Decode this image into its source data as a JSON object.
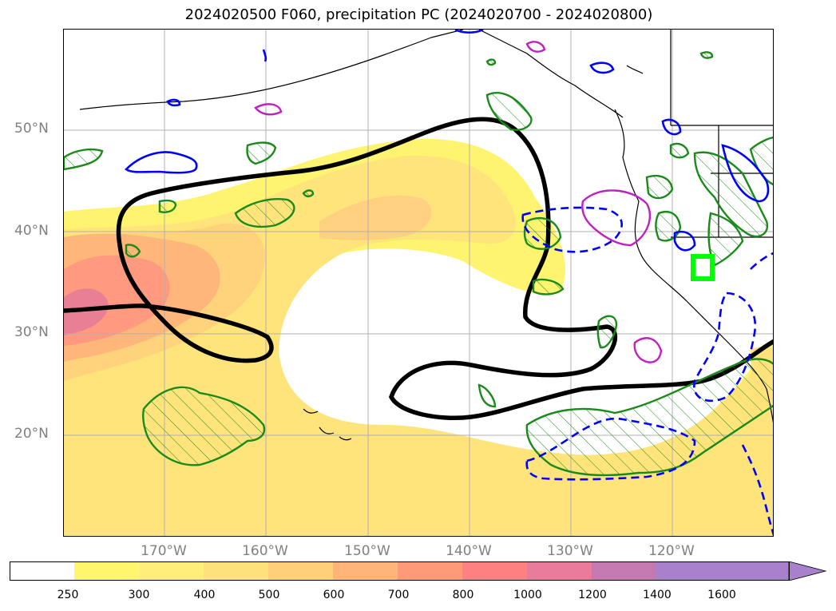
{
  "title": "2024020500 F060, precipitation PC (2024020700 - 2024020800)",
  "map": {
    "projection": "PlateCarree",
    "lon_range": [
      -180,
      -110
    ],
    "lat_range": [
      10,
      60
    ],
    "gridlines": true,
    "lat_labels": [
      "50°N",
      "40°N",
      "30°N",
      "20°N"
    ],
    "lon_labels": [
      "170°W",
      "160°W",
      "150°W",
      "140°W",
      "130°W",
      "120°W"
    ],
    "overlays": [
      {
        "name": "precipitation filled contours",
        "color_scale": "yellow-to-purple"
      },
      {
        "name": "thick black contour",
        "color": "#000000"
      },
      {
        "name": "green hatched contours",
        "color": "#1a8a1a"
      },
      {
        "name": "blue contours solid/dashed",
        "color": "#0000ff"
      },
      {
        "name": "magenta contours",
        "color": "#c020c0"
      },
      {
        "name": "lime box",
        "color": "#00ff00"
      }
    ]
  },
  "colorbar": {
    "ticks": [
      "250",
      "300",
      "400",
      "500",
      "600",
      "700",
      "800",
      "1000",
      "1200",
      "1400",
      "1600"
    ],
    "colors": [
      "#ffffff",
      "#fff66e",
      "#ffee7a",
      "#ffe07a",
      "#ffcf7a",
      "#ffb57a",
      "#ff9a78",
      "#ff8080",
      "#e87a9a",
      "#c27ab0",
      "#a880cc"
    ],
    "extend": "max"
  }
}
